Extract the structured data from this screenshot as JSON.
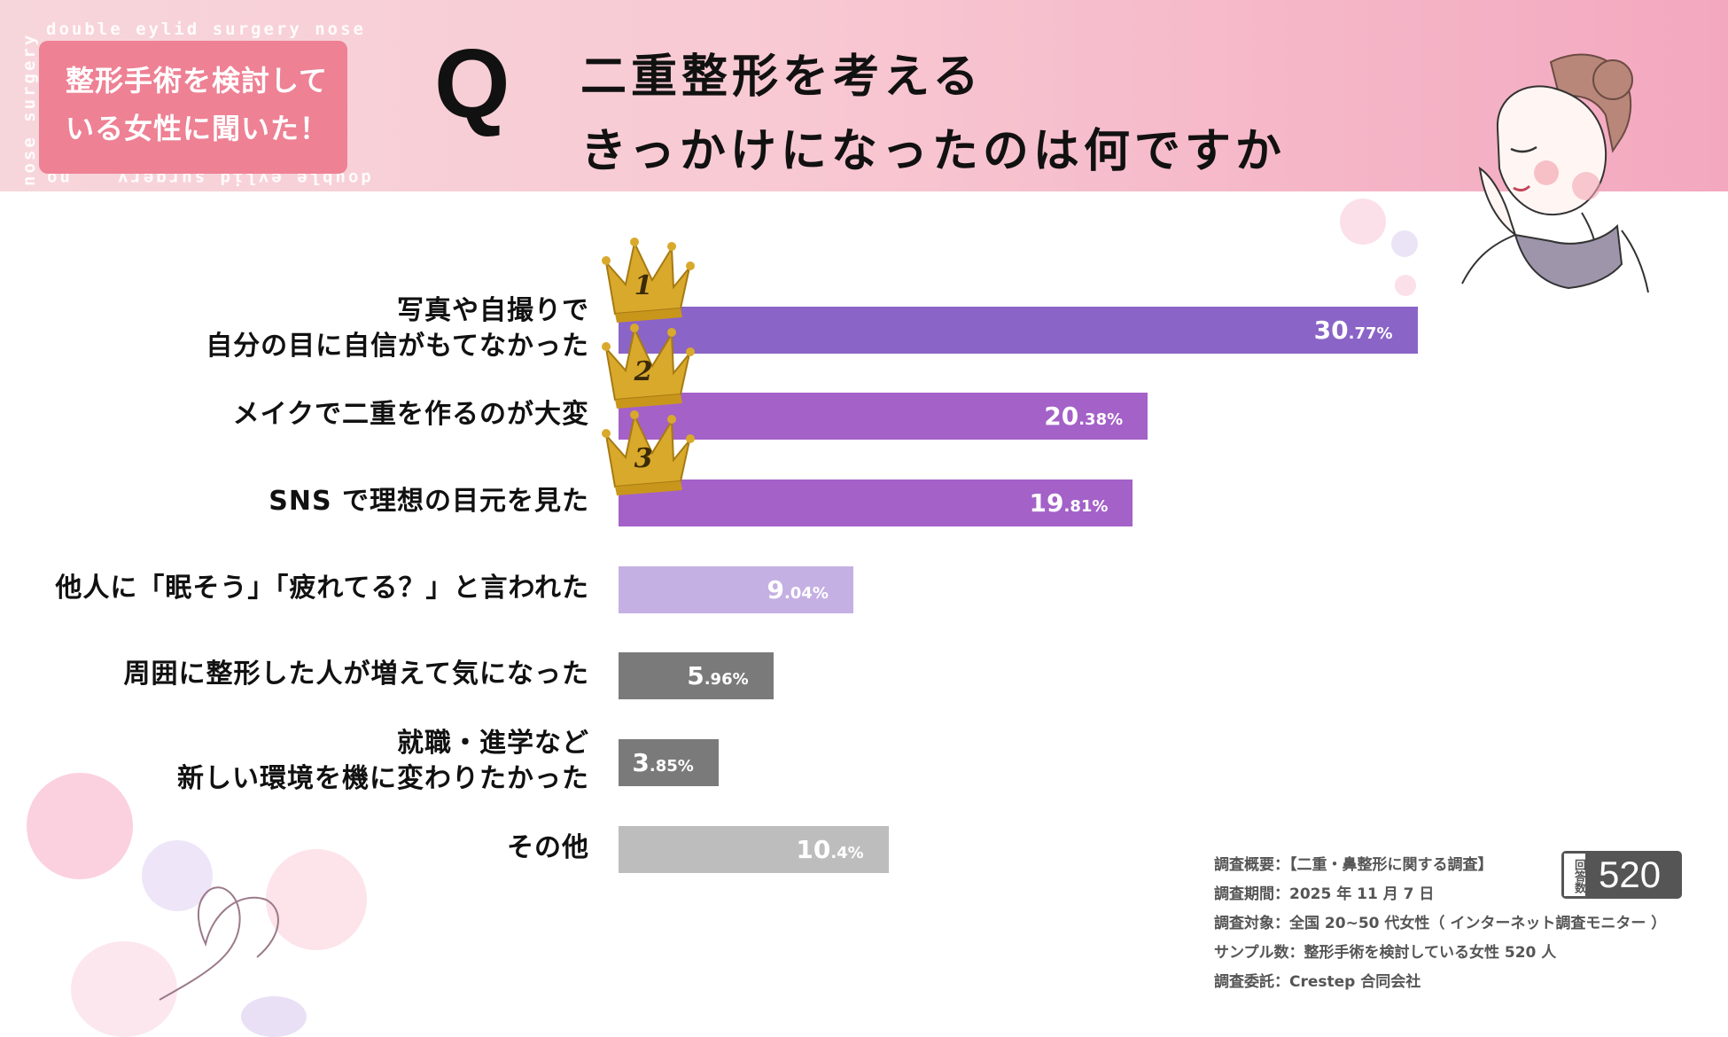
{
  "header": {
    "badge_line1": "整形手術を検討して",
    "badge_line2": "いる女性に聞いた！",
    "q_letter": "Q",
    "question_line1": "二重整形を考える",
    "question_line2": "きっかけになったのは何ですか",
    "deco_text_top": "double eylid surgery   nose",
    "deco_text_bottom": "double eylid surgery",
    "deco_text_right": "surgery",
    "deco_text_left": "nose surgery",
    "deco_text_corner": "no"
  },
  "chart_data": {
    "type": "bar",
    "orientation": "horizontal",
    "categories": [
      "写真や自撮りで\n自分の目に自信がもてなかった",
      "メイクで二重を作るのが大変",
      "SNS で理想の目元を見た",
      "他人に「眠そう」「疲れてる？」と言われた",
      "周囲に整形した人が増えて気になった",
      "就職・進学など\n新しい環境を機に変わりたかった",
      "その他"
    ],
    "label_lines": [
      [
        "写真や自撮りで",
        "自分の目に自信がもてなかった"
      ],
      [
        "メイクで二重を作るのが大変"
      ],
      [
        "SNS で理想の目元を見た"
      ],
      [
        "他人に「眠そう」「疲れてる？」と言われた"
      ],
      [
        "周囲に整形した人が増えて気になった"
      ],
      [
        "就職・進学など",
        "新しい環境を機に変わりたかった"
      ],
      [
        "その他"
      ]
    ],
    "values": [
      30.77,
      20.38,
      19.81,
      9.04,
      5.96,
      3.85,
      10.4
    ],
    "value_labels": [
      {
        "int": "30",
        "dec": ".77%"
      },
      {
        "int": "20",
        "dec": ".38%"
      },
      {
        "int": "19",
        "dec": ".81%"
      },
      {
        "int": "9",
        "dec": ".04%"
      },
      {
        "int": "5",
        "dec": ".96%"
      },
      {
        "int": "3",
        "dec": ".85%"
      },
      {
        "int": "10",
        "dec": ".4%"
      }
    ],
    "colors": [
      "#8a64c7",
      "#a461c8",
      "#a461c8",
      "#c5b0e3",
      "#7a7a7a",
      "#7a7a7a",
      "#bdbdbd"
    ],
    "ranks": [
      "1",
      "2",
      "3"
    ],
    "unit": "%"
  },
  "summary": {
    "overview": "調査概要：【二重・鼻整形に関する調査】",
    "period": "調査期間：2025 年 11 月 7 日",
    "target": "調査対象：全国 20~50 代女性（ インターネット調査モニター ）",
    "sample": "サンプル数：整形手術を検討している女性 520 人",
    "commissioner": "調査委託：Crestep 合同会社",
    "respondents_label": "回答数",
    "respondents": "520"
  },
  "colors": {
    "header_pink": "#f7c3cf",
    "badge_pink": "#ee8194",
    "crown_gold": "#d9a92c"
  }
}
